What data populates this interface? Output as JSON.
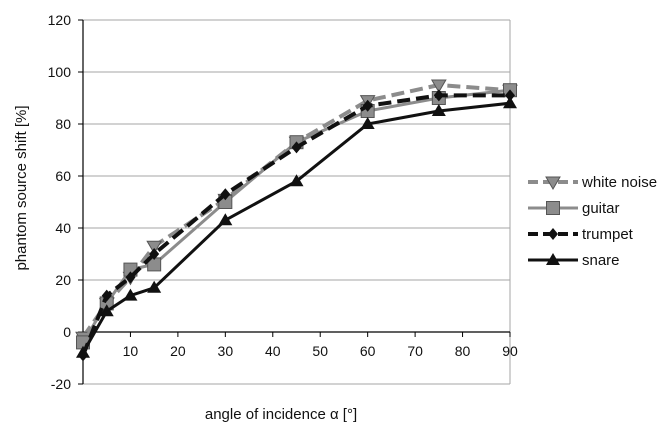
{
  "chart_data": {
    "type": "line",
    "title": "",
    "xlabel": "angle of incidence α [°]",
    "ylabel": "phantom source shift [%]",
    "xlim": [
      0,
      90
    ],
    "ylim": [
      -20,
      120
    ],
    "xticks": [
      10,
      20,
      30,
      40,
      50,
      60,
      70,
      80,
      90
    ],
    "yticks": [
      -20,
      0,
      20,
      40,
      60,
      80,
      100,
      120
    ],
    "grid": "horizontal",
    "legend_position": "right",
    "series": [
      {
        "name": "white noise",
        "color": "#8c8c8c",
        "dash": "dashed",
        "marker": "triangle-down",
        "x": [
          0,
          5,
          10,
          15,
          30,
          45,
          60,
          75,
          90
        ],
        "y": [
          -2,
          11,
          21,
          33,
          51,
          73,
          89,
          95,
          93
        ]
      },
      {
        "name": "guitar",
        "color": "#8c8c8c",
        "dash": "solid",
        "marker": "square",
        "x": [
          0,
          5,
          10,
          15,
          30,
          45,
          60,
          75,
          90
        ],
        "y": [
          -4,
          11,
          24,
          26,
          50,
          73,
          85,
          90,
          93
        ]
      },
      {
        "name": "trumpet",
        "color": "#111111",
        "dash": "dashed",
        "marker": "diamond",
        "x": [
          0,
          5,
          10,
          15,
          30,
          45,
          60,
          75,
          90
        ],
        "y": [
          -9,
          14,
          21,
          30,
          53,
          71,
          87,
          91,
          91
        ]
      },
      {
        "name": "snare",
        "color": "#111111",
        "dash": "solid",
        "marker": "triangle-up",
        "x": [
          0,
          5,
          10,
          15,
          30,
          45,
          60,
          75,
          90
        ],
        "y": [
          -8,
          8,
          14,
          17,
          43,
          58,
          80,
          85,
          88
        ]
      }
    ]
  }
}
